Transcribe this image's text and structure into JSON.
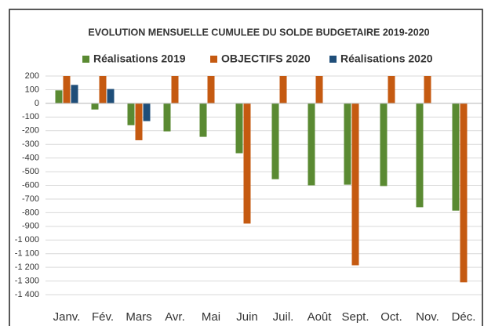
{
  "chart_data": {
    "type": "bar",
    "title": "EVOLUTION MENSUELLE CUMULEE DU SOLDE BUDGETAIRE 2019-2020",
    "categories": [
      "Janv.",
      "Fév.",
      "Mars",
      "Avr.",
      "Mai",
      "Juin",
      "Juil.",
      "Août",
      "Sept.",
      "Oct.",
      "Nov.",
      "Déc."
    ],
    "series": [
      {
        "name": "Réalisations 2019",
        "color": "#5a8a32",
        "values": [
          95,
          -45,
          -160,
          -205,
          -245,
          -365,
          -555,
          -600,
          -595,
          -605,
          -760,
          -785
        ]
      },
      {
        "name": "OBJECTIFS 2020",
        "color": "#c55a11",
        "values": [
          200,
          200,
          -270,
          200,
          200,
          -880,
          200,
          200,
          -1185,
          200,
          200,
          -1310
        ]
      },
      {
        "name": "Réalisations 2020",
        "color": "#1f4e79",
        "values": [
          135,
          105,
          -130,
          null,
          null,
          null,
          null,
          null,
          null,
          null,
          null,
          null
        ]
      }
    ],
    "ylim": [
      -1400,
      200
    ],
    "yticks": [
      200,
      100,
      0,
      -100,
      -200,
      -300,
      -400,
      -500,
      -600,
      -700,
      -800,
      -900,
      {
        "value": -1000,
        "label": "-1 000"
      },
      {
        "value": -1100,
        "label": "-1 100"
      },
      {
        "value": -1200,
        "label": "-1 200"
      },
      {
        "value": -1300,
        "label": "-1 300"
      },
      {
        "value": -1400,
        "label": "-1 400"
      }
    ],
    "grid": true
  }
}
